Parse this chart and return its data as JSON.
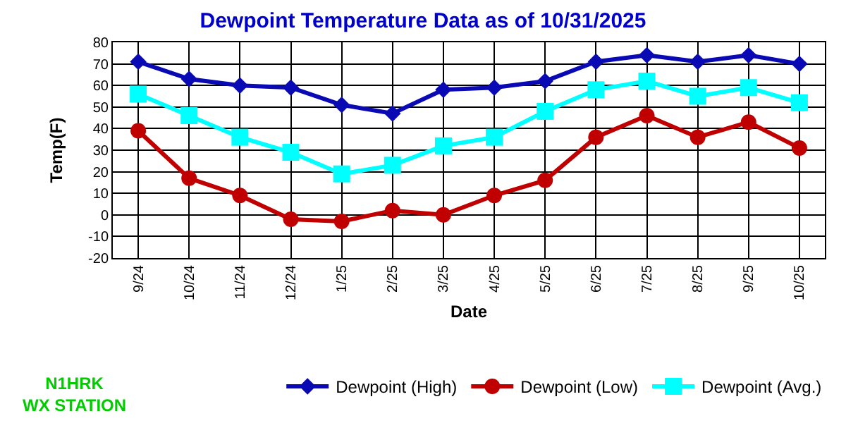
{
  "chart_data": {
    "type": "line",
    "title": "Dewpoint Temperature Data as of 10/31/2025",
    "xlabel": "Date",
    "ylabel": "Temp(F)",
    "categories": [
      "9/24",
      "10/24",
      "11/24",
      "12/24",
      "1/25",
      "2/25",
      "3/25",
      "4/25",
      "5/25",
      "6/25",
      "7/25",
      "8/25",
      "9/25",
      "10/25"
    ],
    "series": [
      {
        "name": "Dewpoint (High)",
        "color": "#0a0ab4",
        "marker": "diamond",
        "values": [
          71,
          63,
          60,
          59,
          51,
          47,
          58,
          59,
          62,
          71,
          74,
          71,
          74,
          70
        ]
      },
      {
        "name": "Dewpoint (Low)",
        "color": "#c00000",
        "marker": "circle",
        "values": [
          39,
          17,
          9,
          -2,
          -3,
          2,
          0,
          9,
          16,
          36,
          46,
          36,
          43,
          31
        ]
      },
      {
        "name": "Dewpoint (Avg.)",
        "color": "#00ffff",
        "marker": "square",
        "values": [
          56,
          46,
          36,
          29,
          19,
          23,
          32,
          36,
          48,
          58,
          62,
          55,
          59,
          52
        ]
      }
    ],
    "ylim": [
      -20,
      80
    ],
    "yticks": [
      -20,
      -10,
      0,
      10,
      20,
      30,
      40,
      50,
      60,
      70,
      80
    ],
    "grid": true,
    "legend": "bottom",
    "line_style": "solid",
    "annotations": [
      "N1HRK\nWX STATION"
    ]
  }
}
